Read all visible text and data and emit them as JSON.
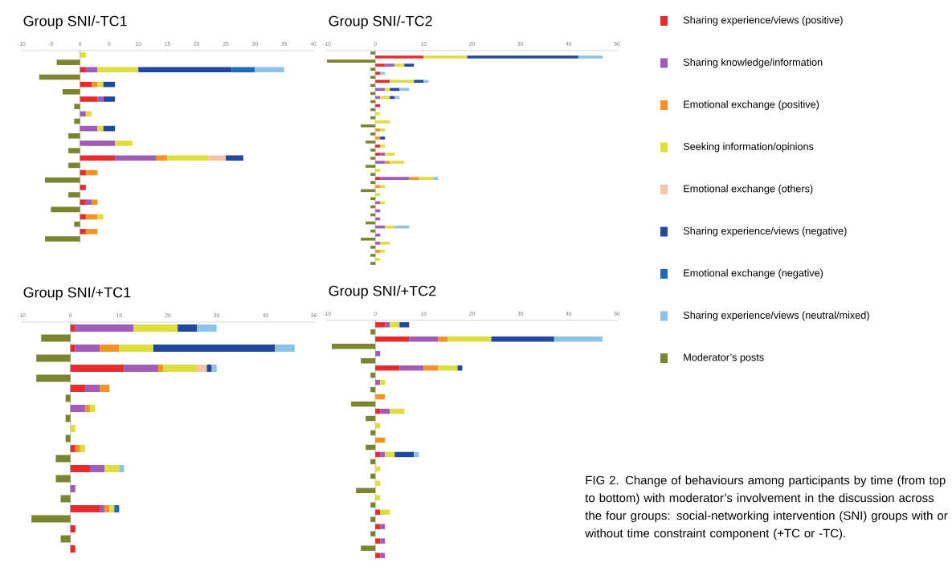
{
  "chart_data": [
    {
      "type": "bar",
      "orientation": "horizontal",
      "stacked": true,
      "title": "Group SNI/-TC1",
      "legend": "right",
      "xlim": [
        -10,
        40
      ],
      "xticks": [
        -10,
        -5,
        0,
        5,
        10,
        15,
        20,
        25,
        30,
        35,
        40
      ],
      "categories": [
        null,
        null,
        null,
        null,
        null,
        null,
        null,
        null,
        null,
        null,
        null,
        null,
        null,
        null,
        null,
        null,
        null,
        null,
        null,
        null,
        null,
        null,
        null,
        null,
        null,
        null
      ],
      "series": [
        {
          "name": "Sharing experience/views (positive)",
          "color": "#e52b2b",
          "values": [
            null,
            null,
            1,
            null,
            2,
            null,
            3,
            null,
            null,
            null,
            null,
            null,
            null,
            null,
            6,
            null,
            1,
            null,
            1,
            null,
            1,
            null,
            1,
            null,
            1,
            null
          ]
        },
        {
          "name": "Sharing knowledge/information",
          "color": "#a05cb8",
          "values": [
            null,
            null,
            2,
            null,
            null,
            null,
            1,
            null,
            1,
            null,
            3,
            null,
            6,
            null,
            7,
            null,
            null,
            null,
            null,
            null,
            1,
            null,
            null,
            null,
            null,
            null
          ]
        },
        {
          "name": "Emotional exchange (positive)",
          "color": "#f39325",
          "values": [
            null,
            null,
            null,
            null,
            1,
            null,
            null,
            null,
            null,
            null,
            null,
            null,
            null,
            null,
            2,
            null,
            2,
            null,
            null,
            null,
            1,
            null,
            2,
            null,
            2,
            null
          ]
        },
        {
          "name": "Seeking information/opinions",
          "color": "#dede3e",
          "values": [
            1,
            null,
            7,
            null,
            1,
            null,
            null,
            null,
            1,
            null,
            1,
            null,
            3,
            null,
            7,
            null,
            null,
            null,
            null,
            null,
            null,
            null,
            1,
            null,
            null,
            null
          ]
        },
        {
          "name": "Emotional exchange (others)",
          "color": "#f5c4a6",
          "values": [
            null,
            null,
            null,
            null,
            null,
            null,
            null,
            null,
            null,
            null,
            null,
            null,
            null,
            null,
            3,
            null,
            null,
            null,
            null,
            null,
            null,
            null,
            null,
            null,
            null,
            null
          ]
        },
        {
          "name": "Sharing experience/views (negative)",
          "color": "#22489e",
          "values": [
            null,
            null,
            16,
            null,
            2,
            null,
            2,
            null,
            null,
            null,
            2,
            null,
            null,
            null,
            3,
            null,
            null,
            null,
            null,
            null,
            null,
            null,
            null,
            null,
            null,
            null
          ]
        },
        {
          "name": "Emotional exchange (negative)",
          "color": "#1f6cb6",
          "values": [
            null,
            null,
            4,
            null,
            null,
            null,
            null,
            null,
            null,
            null,
            null,
            null,
            null,
            null,
            null,
            null,
            null,
            null,
            null,
            null,
            null,
            null,
            null,
            null,
            null,
            null
          ]
        },
        {
          "name": "Sharing experience/views (neutral/mixed)",
          "color": "#8dc4e6",
          "values": [
            null,
            null,
            5,
            null,
            null,
            null,
            null,
            null,
            null,
            null,
            null,
            null,
            null,
            null,
            null,
            null,
            null,
            null,
            null,
            null,
            null,
            null,
            null,
            null,
            null,
            null
          ]
        },
        {
          "name": "Moderator’s posts",
          "color": "#7b8530",
          "values": [
            null,
            -4,
            null,
            -7,
            null,
            -3,
            null,
            -1,
            null,
            -1,
            null,
            -2,
            null,
            -2,
            null,
            -2,
            null,
            -6,
            null,
            -2,
            null,
            -5,
            null,
            -1,
            null,
            -6
          ]
        }
      ]
    },
    {
      "type": "bar",
      "orientation": "horizontal",
      "stacked": true,
      "title": "Group SNI/-TC2",
      "xlim": [
        -10,
        50
      ],
      "xticks": [
        -10,
        0,
        10,
        20,
        30,
        40,
        50
      ],
      "categories": [
        null,
        null,
        null,
        null,
        null,
        null,
        null,
        null,
        null,
        null,
        null,
        null,
        null,
        null,
        null,
        null,
        null,
        null,
        null,
        null,
        null,
        null,
        null,
        null,
        null,
        null,
        null,
        null,
        null,
        null,
        null,
        null,
        null,
        null,
        null,
        null,
        null,
        null,
        null,
        null,
        null,
        null,
        null,
        null,
        null,
        null,
        null,
        null,
        null,
        null,
        null,
        null,
        null
      ],
      "series": [
        {
          "color": "#e52b2b",
          "values": [
            null,
            10,
            null,
            2,
            null,
            1,
            null,
            3,
            null,
            null,
            null,
            null,
            null,
            1,
            null,
            null,
            null,
            null,
            null,
            null,
            null,
            null,
            null,
            1,
            null,
            1,
            null,
            null,
            null,
            null,
            null,
            1,
            null,
            null,
            null,
            null,
            null,
            null,
            null,
            null,
            null,
            null,
            null,
            null,
            null,
            null,
            null,
            null,
            null,
            null,
            null,
            null,
            null
          ]
        },
        {
          "color": "#a05cb8",
          "values": [
            null,
            null,
            null,
            2,
            null,
            null,
            null,
            null,
            null,
            2,
            null,
            1,
            null,
            null,
            null,
            null,
            null,
            null,
            null,
            null,
            null,
            null,
            null,
            null,
            null,
            1,
            null,
            2,
            null,
            null,
            null,
            6,
            null,
            null,
            null,
            null,
            null,
            1,
            null,
            1,
            null,
            1,
            null,
            2,
            null,
            1,
            null,
            1,
            null,
            null,
            null,
            null,
            null
          ]
        },
        {
          "color": "#f39325",
          "values": [
            null,
            null,
            null,
            null,
            null,
            null,
            null,
            null,
            null,
            null,
            null,
            null,
            null,
            null,
            null,
            null,
            null,
            null,
            null,
            1,
            null,
            1,
            null,
            null,
            null,
            null,
            null,
            1,
            null,
            null,
            null,
            2,
            null,
            1,
            null,
            null,
            null,
            null,
            null,
            null,
            null,
            null,
            null,
            null,
            null,
            null,
            null,
            null,
            null,
            1,
            null,
            null,
            null
          ]
        },
        {
          "color": "#dede3e",
          "values": [
            null,
            9,
            null,
            2,
            null,
            null,
            null,
            5,
            null,
            1,
            null,
            2,
            null,
            null,
            null,
            1,
            null,
            3,
            null,
            1,
            null,
            null,
            null,
            1,
            null,
            2,
            null,
            3,
            null,
            1,
            null,
            3,
            null,
            1,
            null,
            1,
            null,
            1,
            null,
            null,
            null,
            null,
            null,
            2,
            null,
            null,
            null,
            2,
            null,
            1,
            null,
            1,
            null
          ]
        },
        {
          "color": "#22489e",
          "values": [
            null,
            23,
            null,
            2,
            null,
            null,
            null,
            2,
            null,
            2,
            null,
            1,
            null,
            null,
            null,
            null,
            null,
            null,
            null,
            null,
            null,
            1,
            null,
            null,
            null,
            null,
            null,
            null,
            null,
            null,
            null,
            null,
            null,
            null,
            null,
            null,
            null,
            null,
            null,
            null,
            null,
            null,
            null,
            null,
            null,
            null,
            null,
            null,
            null,
            null,
            null,
            null,
            null
          ]
        },
        {
          "color": "#8dc4e6",
          "values": [
            null,
            5,
            null,
            null,
            null,
            1,
            null,
            1,
            null,
            2,
            null,
            1,
            null,
            null,
            null,
            null,
            null,
            null,
            null,
            null,
            null,
            null,
            null,
            null,
            null,
            null,
            null,
            null,
            null,
            null,
            null,
            1,
            null,
            null,
            null,
            null,
            null,
            null,
            null,
            null,
            null,
            null,
            null,
            3,
            null,
            null,
            null,
            null,
            null,
            null,
            null,
            null,
            null
          ]
        },
        {
          "color": "#7b8530",
          "values": [
            -1,
            null,
            -10,
            null,
            -1,
            null,
            -1,
            null,
            -1,
            null,
            -1,
            null,
            -1,
            null,
            -1,
            null,
            -1,
            null,
            -3,
            null,
            -1,
            null,
            -2,
            null,
            -1,
            null,
            -1,
            null,
            -2,
            null,
            -1,
            null,
            -1,
            null,
            -3,
            null,
            -1,
            null,
            -1,
            null,
            -1,
            null,
            -2,
            null,
            -1,
            null,
            -3,
            null,
            -1,
            null,
            -1,
            null,
            -1
          ]
        }
      ]
    },
    {
      "type": "bar",
      "orientation": "horizontal",
      "stacked": true,
      "title": "Group SNI/+TC1",
      "xlim": [
        -10,
        50
      ],
      "xticks": [
        -10,
        0,
        10,
        20,
        30,
        40,
        50
      ],
      "categories": [
        null,
        null,
        null,
        null,
        null,
        null,
        null,
        null,
        null,
        null,
        null,
        null,
        null,
        null,
        null,
        null,
        null,
        null,
        null,
        null,
        null,
        null,
        null
      ],
      "series": [
        {
          "color": "#e52b2b",
          "values": [
            1,
            null,
            1,
            null,
            11,
            null,
            3,
            null,
            null,
            null,
            null,
            null,
            1,
            null,
            4,
            null,
            null,
            null,
            6,
            null,
            1,
            null,
            1
          ]
        },
        {
          "color": "#a05cb8",
          "values": [
            12,
            null,
            5,
            null,
            7,
            null,
            3,
            null,
            3,
            null,
            null,
            null,
            null,
            null,
            3,
            null,
            1,
            null,
            1,
            null,
            null,
            null,
            null
          ]
        },
        {
          "color": "#f39325",
          "values": [
            null,
            null,
            4,
            null,
            1,
            null,
            2,
            null,
            1,
            null,
            null,
            null,
            1,
            null,
            null,
            null,
            null,
            null,
            1,
            null,
            null,
            null,
            null
          ]
        },
        {
          "color": "#dede3e",
          "values": [
            9,
            null,
            7,
            null,
            7,
            null,
            null,
            null,
            1,
            null,
            1,
            null,
            1,
            null,
            3,
            null,
            null,
            null,
            1,
            null,
            null,
            null,
            null
          ]
        },
        {
          "color": "#f5c4a6",
          "values": [
            null,
            null,
            null,
            null,
            2,
            null,
            null,
            null,
            null,
            null,
            null,
            null,
            null,
            null,
            null,
            null,
            null,
            null,
            null,
            null,
            null,
            null,
            null
          ]
        },
        {
          "color": "#22489e",
          "values": [
            4,
            null,
            25,
            null,
            1,
            null,
            null,
            null,
            null,
            null,
            null,
            null,
            null,
            null,
            null,
            null,
            null,
            null,
            null,
            null,
            null,
            null,
            null
          ]
        },
        {
          "color": "#1f6cb6",
          "values": [
            null,
            null,
            null,
            null,
            null,
            null,
            null,
            null,
            null,
            null,
            null,
            null,
            null,
            null,
            null,
            null,
            null,
            null,
            1,
            null,
            null,
            null,
            null
          ]
        },
        {
          "color": "#8dc4e6",
          "values": [
            4,
            null,
            4,
            null,
            1,
            null,
            null,
            null,
            null,
            null,
            null,
            null,
            null,
            null,
            1,
            null,
            null,
            null,
            null,
            null,
            null,
            null,
            null
          ]
        },
        {
          "color": "#7b8530",
          "values": [
            null,
            -6,
            null,
            -7,
            null,
            -7,
            null,
            -1,
            null,
            -1,
            null,
            -1,
            null,
            -3,
            null,
            -3,
            null,
            -2,
            null,
            -8,
            null,
            -2,
            null
          ]
        }
      ]
    },
    {
      "type": "bar",
      "orientation": "horizontal",
      "stacked": true,
      "title": "Group SNI/+TC2",
      "xlim": [
        -10,
        50
      ],
      "xticks": [
        -10,
        0,
        10,
        20,
        30,
        40,
        50
      ],
      "annotations": [
        "FIG 2.  Change of behaviours among participants by time (from top to bottom) with moderator’s involvement in the discussion across the four groups: social-networking intervention (SNI) groups with or without time constraint component (+TC or -TC)."
      ],
      "categories": [
        null,
        null,
        null,
        null,
        null,
        null,
        null,
        null,
        null,
        null,
        null,
        null,
        null,
        null,
        null,
        null,
        null,
        null,
        null,
        null,
        null,
        null,
        null,
        null,
        null,
        null,
        null,
        null,
        null,
        null,
        null,
        null,
        null
      ],
      "series": [
        {
          "color": "#e52b2b",
          "values": [
            2,
            null,
            7,
            null,
            null,
            null,
            5,
            null,
            null,
            null,
            null,
            null,
            1,
            null,
            null,
            null,
            null,
            null,
            1,
            null,
            null,
            null,
            null,
            null,
            null,
            null,
            1,
            null,
            1,
            null,
            1,
            null,
            1
          ]
        },
        {
          "color": "#a05cb8",
          "values": [
            1,
            null,
            6,
            null,
            1,
            null,
            5,
            null,
            1,
            null,
            null,
            null,
            2,
            null,
            null,
            null,
            null,
            null,
            1,
            null,
            null,
            null,
            null,
            null,
            null,
            null,
            null,
            null,
            1,
            null,
            1,
            null,
            1
          ]
        },
        {
          "color": "#f39325",
          "values": [
            null,
            null,
            2,
            null,
            null,
            null,
            3,
            null,
            null,
            null,
            2,
            null,
            null,
            null,
            null,
            null,
            2,
            null,
            null,
            null,
            null,
            null,
            null,
            null,
            null,
            null,
            null,
            null,
            null,
            null,
            null,
            null,
            null
          ]
        },
        {
          "color": "#dede3e",
          "values": [
            2,
            null,
            9,
            null,
            null,
            null,
            4,
            null,
            1,
            null,
            null,
            null,
            3,
            null,
            1,
            null,
            null,
            null,
            2,
            null,
            1,
            null,
            1,
            null,
            1,
            null,
            2,
            null,
            null,
            null,
            null,
            null,
            null
          ]
        },
        {
          "color": "#22489e",
          "values": [
            2,
            null,
            13,
            null,
            null,
            null,
            1,
            null,
            null,
            null,
            null,
            null,
            null,
            null,
            null,
            null,
            null,
            null,
            4,
            null,
            null,
            null,
            null,
            null,
            null,
            null,
            null,
            null,
            null,
            null,
            null,
            null,
            null
          ]
        },
        {
          "color": "#8dc4e6",
          "values": [
            null,
            null,
            10,
            null,
            null,
            null,
            null,
            null,
            null,
            null,
            null,
            null,
            null,
            null,
            null,
            null,
            null,
            null,
            1,
            null,
            null,
            null,
            null,
            null,
            null,
            null,
            null,
            null,
            null,
            null,
            null,
            null,
            null
          ]
        },
        {
          "color": "#7b8530",
          "values": [
            null,
            -1,
            null,
            -9,
            null,
            -3,
            null,
            -1,
            null,
            -1,
            null,
            -5,
            null,
            -2,
            null,
            -1,
            null,
            -2,
            null,
            -1,
            null,
            -1,
            null,
            -4,
            null,
            -1,
            null,
            -1,
            null,
            -1,
            null,
            -3,
            null
          ]
        }
      ]
    }
  ]
}
